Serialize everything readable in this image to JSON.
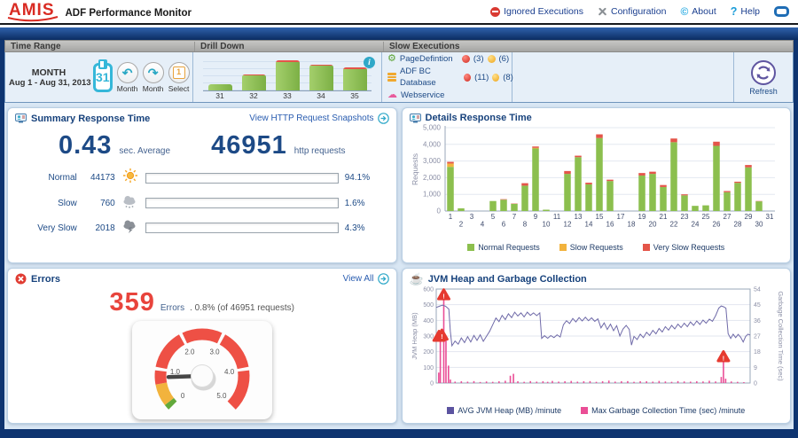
{
  "header": {
    "logo_text": "AMIS",
    "app_title": "ADF Performance Monitor",
    "nav": [
      {
        "label": "Ignored Executions"
      },
      {
        "label": "Configuration"
      },
      {
        "label": "About"
      },
      {
        "label": "Help"
      }
    ]
  },
  "toolbar": {
    "section_titles": {
      "time_range": "Time Range",
      "drill_down": "Drill Down",
      "slow_executions": "Slow Executions"
    },
    "time_range": {
      "mode": "MONTH",
      "range": "Aug 1 - Aug 31, 2013",
      "calendar_day": "31",
      "prev_label": "Month",
      "next_label": "Month",
      "select_label": "Select",
      "select_day": "1"
    },
    "slow_executions": {
      "rows": [
        {
          "label": "PageDefintion",
          "red_count": "(3)",
          "yellow_count": "(6)"
        },
        {
          "label": "ADF BC Database",
          "red_count": "(11)",
          "yellow_count": "(8)"
        },
        {
          "label": "Webservice",
          "red_count": "",
          "yellow_count": ""
        }
      ]
    },
    "refresh_label": "Refresh"
  },
  "summary": {
    "title": "Summary Response Time",
    "link_label": "View HTTP Request Snapshots",
    "avg_value": "0.43",
    "avg_unit": "sec. Average",
    "total_value": "46951",
    "total_unit": "http requests",
    "rows": [
      {
        "label": "Normal",
        "count": "44173",
        "pct": "94.1%",
        "fill": "94.1%"
      },
      {
        "label": "Slow",
        "count": "760",
        "pct": "1.6%",
        "fill": "1.6%"
      },
      {
        "label": "Very Slow",
        "count": "2018",
        "pct": "4.3%",
        "fill": "4.3%"
      }
    ]
  },
  "details": {
    "title": "Details Response Time"
  },
  "errors": {
    "title": "Errors",
    "count": "359",
    "count_unit": "Errors",
    "detail": ". 0.8%  (of 46951 requests)",
    "link_label": "View All"
  },
  "jvm": {
    "title": "JVM Heap and Garbage Collection"
  },
  "colors": {
    "normal_green": "#8cbf4e",
    "slow_yellow": "#f2b33d",
    "very_slow_red": "#e45549",
    "heap_purple": "#6f6aa8",
    "gc_pink": "#ea4e96",
    "accent_teal": "#2fa8c8",
    "error_red": "#e8443c",
    "link_blue": "#2a5db0",
    "navy_frame": "#0e3470"
  },
  "chart_data": [
    {
      "id": "drilldown",
      "type": "bar",
      "categories": [
        "31",
        "32",
        "33",
        "34",
        "35"
      ],
      "series": [
        {
          "name": "Normal",
          "color": "#8cbf4e",
          "values": [
            16,
            40,
            76,
            66,
            57
          ]
        },
        {
          "name": "Very Slow",
          "color": "#e45549",
          "values": [
            0,
            4,
            5,
            4,
            4
          ]
        }
      ],
      "ylim": [
        0,
        100
      ]
    },
    {
      "id": "details-response",
      "type": "stacked-bar",
      "title": "Details Response Time",
      "ylabel": "Requests",
      "ylim": [
        0,
        5000
      ],
      "ytick_values": [
        0,
        1000,
        2000,
        3000,
        4000,
        5000
      ],
      "ytick_labels": [
        "0",
        "1,000",
        "2,000",
        "3,000",
        "4,000",
        "5,000"
      ],
      "categories": [
        "1",
        "2",
        "3",
        "4",
        "5",
        "6",
        "7",
        "8",
        "9",
        "10",
        "11",
        "12",
        "13",
        "14",
        "15",
        "16",
        "17",
        "18",
        "19",
        "20",
        "21",
        "22",
        "23",
        "24",
        "25",
        "26",
        "27",
        "28",
        "29",
        "30",
        "31"
      ],
      "series": [
        {
          "name": "Normal Requests",
          "color": "#8cbf4e",
          "values": [
            2650,
            160,
            0,
            0,
            600,
            680,
            430,
            1520,
            3750,
            80,
            0,
            2230,
            3230,
            1600,
            4380,
            1800,
            0,
            0,
            2130,
            2230,
            1440,
            4130,
            940,
            310,
            340,
            3910,
            1130,
            1690,
            2620,
            580,
            0
          ]
        },
        {
          "name": "Slow Requests",
          "color": "#f2b33d",
          "values": [
            200,
            0,
            0,
            0,
            0,
            0,
            0,
            0,
            40,
            0,
            0,
            0,
            0,
            0,
            0,
            0,
            0,
            0,
            0,
            0,
            0,
            0,
            0,
            0,
            0,
            0,
            0,
            0,
            0,
            0,
            0
          ]
        },
        {
          "name": "Very Slow Requests",
          "color": "#e45549",
          "values": [
            100,
            0,
            0,
            0,
            0,
            30,
            20,
            150,
            80,
            0,
            0,
            170,
            90,
            100,
            220,
            80,
            0,
            0,
            150,
            130,
            120,
            220,
            60,
            0,
            0,
            250,
            70,
            70,
            140,
            20,
            0
          ]
        }
      ],
      "legend_position": "bottom",
      "grid": true
    },
    {
      "id": "errors-gauge",
      "type": "gauge",
      "min": 0,
      "max": 5,
      "value": 0.8,
      "tick_values": [
        0,
        1,
        2,
        3,
        4,
        5
      ],
      "tick_labels": [
        "0",
        "1.0",
        "2.0",
        "3.0",
        "4.0",
        "5.0"
      ],
      "segments": [
        [
          0,
          0.13,
          "#62a93c"
        ],
        [
          0.13,
          0.64,
          "#f2b33d"
        ],
        [
          0.64,
          0.96,
          "#ee5045"
        ],
        [
          1.04,
          1.96,
          "#ee5045"
        ],
        [
          2.04,
          2.96,
          "#ee5045"
        ],
        [
          3.04,
          3.96,
          "#ee5045"
        ],
        [
          4.04,
          5,
          "#ee5045"
        ]
      ]
    },
    {
      "id": "jvm-heap-gc",
      "type": "line",
      "left_axis": {
        "label": "JVM Heap (MB)",
        "lim": [
          0,
          600
        ],
        "ticks": [
          0,
          100,
          200,
          300,
          400,
          500,
          600
        ]
      },
      "right_axis": {
        "label": "Garbage Collection Time (sec)",
        "lim": [
          0,
          54
        ],
        "ticks": [
          0,
          9,
          18,
          27,
          36,
          45,
          54
        ]
      },
      "series": [
        {
          "name": "AVG JVM Heap (MB) /minute",
          "color": "#6f6aa8",
          "axis": "left",
          "style": "line",
          "points": [
            [
              0,
              482
            ],
            [
              1,
              490
            ],
            [
              2,
              497
            ],
            [
              3,
              490
            ],
            [
              4,
              472
            ],
            [
              4.5,
              330
            ],
            [
              5,
              238
            ],
            [
              6,
              268
            ],
            [
              7,
              248
            ],
            [
              8,
              288
            ],
            [
              9,
              258
            ],
            [
              10,
              296
            ],
            [
              11,
              262
            ],
            [
              12,
              304
            ],
            [
              13,
              272
            ],
            [
              14,
              308
            ],
            [
              15,
              266
            ],
            [
              16,
              298
            ],
            [
              17,
              330
            ],
            [
              18,
              372
            ],
            [
              19,
              415
            ],
            [
              20,
              392
            ],
            [
              21,
              432
            ],
            [
              22,
              405
            ],
            [
              23,
              442
            ],
            [
              24,
              418
            ],
            [
              25,
              452
            ],
            [
              26,
              428
            ],
            [
              27,
              448
            ],
            [
              28,
              422
            ],
            [
              29,
              452
            ],
            [
              30,
              432
            ],
            [
              31,
              448
            ],
            [
              32,
              430
            ],
            [
              33,
              448
            ],
            [
              33.6,
              285
            ],
            [
              34.5,
              302
            ],
            [
              35.5,
              286
            ],
            [
              36.5,
              303
            ],
            [
              37.5,
              290
            ],
            [
              38.5,
              308
            ],
            [
              39.5,
              294
            ],
            [
              40.5,
              372
            ],
            [
              41.5,
              398
            ],
            [
              42.5,
              380
            ],
            [
              43.5,
              412
            ],
            [
              44.5,
              390
            ],
            [
              45.5,
              418
            ],
            [
              46.5,
              396
            ],
            [
              47.5,
              420
            ],
            [
              48.5,
              398
            ],
            [
              49.5,
              416
            ],
            [
              50.5,
              394
            ],
            [
              51.5,
              410
            ],
            [
              52.5,
              352
            ],
            [
              53.5,
              384
            ],
            [
              54.5,
              342
            ],
            [
              55.5,
              376
            ],
            [
              56.5,
              334
            ],
            [
              57.5,
              366
            ],
            [
              58.5,
              300
            ],
            [
              59.5,
              344
            ],
            [
              60.5,
              368
            ],
            [
              61.5,
              342
            ],
            [
              62.2,
              242
            ],
            [
              63,
              298
            ],
            [
              64,
              278
            ],
            [
              65,
              312
            ],
            [
              66,
              290
            ],
            [
              67,
              324
            ],
            [
              68,
              304
            ],
            [
              69,
              336
            ],
            [
              70,
              314
            ],
            [
              71,
              348
            ],
            [
              72,
              326
            ],
            [
              73,
              360
            ],
            [
              74,
              338
            ],
            [
              75,
              368
            ],
            [
              76,
              346
            ],
            [
              77,
              376
            ],
            [
              78,
              354
            ],
            [
              79,
              382
            ],
            [
              80,
              360
            ],
            [
              81,
              390
            ],
            [
              82,
              368
            ],
            [
              83,
              396
            ],
            [
              84,
              374
            ],
            [
              85,
              402
            ],
            [
              86,
              382
            ],
            [
              87,
              408
            ],
            [
              88,
              394
            ],
            [
              89,
              430
            ],
            [
              90,
              478
            ],
            [
              90.8,
              492
            ],
            [
              91.6,
              486
            ],
            [
              92.3,
              478
            ],
            [
              93,
              315
            ],
            [
              93.8,
              285
            ],
            [
              94.6,
              312
            ],
            [
              95.4,
              290
            ],
            [
              96.2,
              310
            ],
            [
              97,
              292
            ],
            [
              97.8,
              262
            ],
            [
              98.6,
              298
            ],
            [
              99.3,
              312
            ],
            [
              100,
              306
            ]
          ]
        },
        {
          "name": "Max Garbage Collection Time (sec) /minute",
          "color": "#ea4e96",
          "axis": "right",
          "style": "spikes",
          "points": [
            [
              0.8,
              6
            ],
            [
              1.3,
              27
            ],
            [
              2.4,
              50
            ],
            [
              3.1,
              27
            ],
            [
              3.9,
              10
            ],
            [
              4.5,
              2
            ],
            [
              6,
              0.8
            ],
            [
              8,
              1
            ],
            [
              10,
              0.8
            ],
            [
              12,
              1.1
            ],
            [
              14,
              0.6
            ],
            [
              16,
              0.9
            ],
            [
              18,
              0.7
            ],
            [
              20,
              1
            ],
            [
              22,
              1.3
            ],
            [
              23.6,
              4.2
            ],
            [
              24.6,
              5.3
            ],
            [
              26,
              1
            ],
            [
              28,
              0.7
            ],
            [
              30,
              1.1
            ],
            [
              32,
              0.8
            ],
            [
              34,
              1
            ],
            [
              35.5,
              0.7
            ],
            [
              37,
              1.2
            ],
            [
              39,
              0.8
            ],
            [
              41,
              1
            ],
            [
              43,
              1.2
            ],
            [
              45,
              0.8
            ],
            [
              47,
              1
            ],
            [
              49,
              1.1
            ],
            [
              51,
              0.7
            ],
            [
              53,
              1
            ],
            [
              55,
              1.4
            ],
            [
              57,
              0.8
            ],
            [
              59,
              1
            ],
            [
              61,
              1.1
            ],
            [
              63,
              0.7
            ],
            [
              65,
              1
            ],
            [
              67,
              1
            ],
            [
              69,
              0.8
            ],
            [
              71,
              1.2
            ],
            [
              73,
              0.9
            ],
            [
              75,
              0.7
            ],
            [
              77,
              1.1
            ],
            [
              79,
              0.9
            ],
            [
              81,
              0.8
            ],
            [
              83,
              1
            ],
            [
              85,
              0.9
            ],
            [
              87,
              1.3
            ],
            [
              89,
              0.9
            ],
            [
              90.8,
              3.5
            ],
            [
              91.5,
              12
            ],
            [
              92.2,
              2.5
            ],
            [
              94,
              0.9
            ],
            [
              96,
              0.7
            ],
            [
              98,
              0.5
            ]
          ]
        }
      ],
      "warnings": [
        [
          0.9,
          300
        ],
        [
          1.8,
          308
        ],
        [
          2.4,
          565
        ],
        [
          91.5,
          170
        ]
      ],
      "legend_position": "bottom",
      "grid": true
    }
  ]
}
